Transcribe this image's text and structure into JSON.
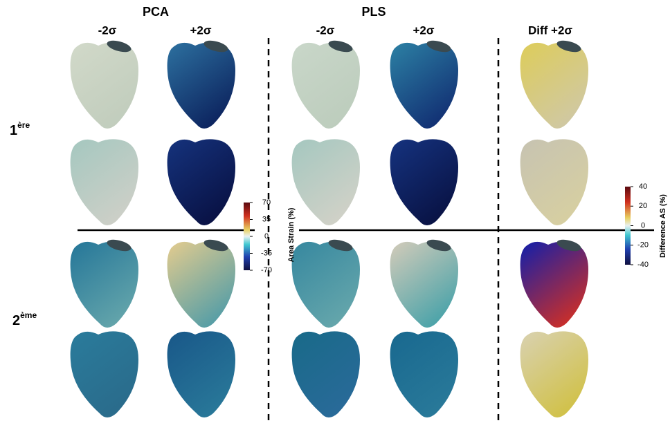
{
  "header": {
    "left": "PCA",
    "middle": "PLS"
  },
  "columns": [
    "-2σ",
    "+2σ",
    "-2σ",
    "+2σ",
    "Diff +2σ"
  ],
  "rows": [
    {
      "number": "1",
      "sup": "ère"
    },
    {
      "number": "2",
      "sup": "ème"
    }
  ],
  "colorbars": [
    {
      "label": "Area Strain (%)",
      "lim": [
        -70,
        70
      ],
      "ticks": [
        70,
        35,
        0,
        -35,
        -70
      ]
    },
    {
      "label": "Difference AS (%)",
      "lim": [
        -40,
        40
      ],
      "ticks": [
        40,
        20,
        0,
        -20,
        -40
      ]
    }
  ]
}
